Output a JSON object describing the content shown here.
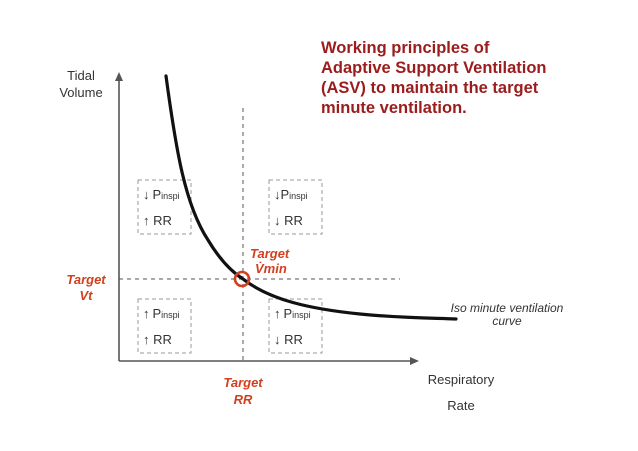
{
  "title_lines": [
    "Working principles of",
    "Adaptive Support Ventilation",
    "(ASV) to maintain the target",
    "minute ventilation."
  ],
  "axes": {
    "y_label_lines": [
      "Tidal",
      "Volume"
    ],
    "x_label_lines": [
      "Respiratory",
      "Rate"
    ]
  },
  "targets": {
    "vt_lines": [
      "Target",
      "Vt"
    ],
    "rr_lines": [
      "Target",
      "RR"
    ],
    "vmin_lines": [
      "Target",
      "V̇min"
    ]
  },
  "quadrants": {
    "top_left": {
      "line1_arrow": "↓",
      "line1_main": "P",
      "line1_sub": "inspi",
      "line2": "↑ RR"
    },
    "top_right": {
      "line1_arrow": "↓",
      "line1_main": "P",
      "line1_sub": "inspi",
      "line2": "↓ RR"
    },
    "bottom_left": {
      "line1_arrow": "↑",
      "line1_main": "P",
      "line1_sub": "inspi",
      "line2": "↑ RR"
    },
    "bottom_right": {
      "line1_arrow": "↑",
      "line1_main": "P",
      "line1_sub": "inspi",
      "line2": "↓ RR"
    }
  },
  "curve_label_lines": [
    "Iso minute ventilation",
    "curve"
  ],
  "colors": {
    "title": "#9b1c1c",
    "target": "#d2401f",
    "axis": "#333333",
    "curve": "#111111"
  }
}
